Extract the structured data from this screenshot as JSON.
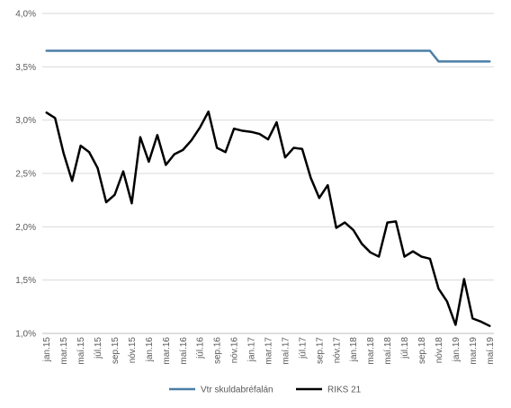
{
  "chart_data": {
    "type": "line",
    "title": "",
    "xlabel": "",
    "ylabel": "",
    "ylim": [
      1.0,
      4.0
    ],
    "y_ticks": [
      "1,0%",
      "1,5%",
      "2,0%",
      "2,5%",
      "3,0%",
      "3,5%",
      "4,0%"
    ],
    "y_tick_values": [
      1.0,
      1.5,
      2.0,
      2.5,
      3.0,
      3.5,
      4.0
    ],
    "grid": true,
    "legend_position": "bottom",
    "x": [
      "jan.15",
      "feb.15",
      "mar.15",
      "apr.15",
      "maí.15",
      "jún.15",
      "júl.15",
      "ágú.15",
      "sep.15",
      "okt.15",
      "nóv.15",
      "des.15",
      "jan.16",
      "feb.16",
      "mar.16",
      "apr.16",
      "maí.16",
      "jún.16",
      "júl.16",
      "ágú.16",
      "sep.16",
      "okt.16",
      "nóv.16",
      "des.16",
      "jan.17",
      "feb.17",
      "mar.17",
      "apr.17",
      "maí.17",
      "jún.17",
      "júl.17",
      "ágú.17",
      "sep.17",
      "okt.17",
      "nóv.17",
      "des.17",
      "jan.18",
      "feb.18",
      "mar.18",
      "apr.18",
      "maí.18",
      "jún.18",
      "júl.18",
      "ágú.18",
      "sep.18",
      "okt.18",
      "nóv.18",
      "des.18",
      "jan.19",
      "feb.19",
      "mar.19",
      "apr.19",
      "maí.19"
    ],
    "x_tick_labels": [
      "jan.15",
      "mar.15",
      "maí.15",
      "júl.15",
      "sep.15",
      "nóv.15",
      "jan.16",
      "mar.16",
      "maí.16",
      "júl.16",
      "sep.16",
      "nóv.16",
      "jan.17",
      "mar.17",
      "maí.17",
      "júl.17",
      "sep.17",
      "nóv.17",
      "jan.18",
      "mar.18",
      "maí.18",
      "júl.18",
      "sep.18",
      "nóv.18",
      "jan.19",
      "mar.19",
      "maí.19"
    ],
    "series": [
      {
        "name": "Vtr skuldabréfalán",
        "color": "#4a7ea6",
        "values": [
          3.65,
          3.65,
          3.65,
          3.65,
          3.65,
          3.65,
          3.65,
          3.65,
          3.65,
          3.65,
          3.65,
          3.65,
          3.65,
          3.65,
          3.65,
          3.65,
          3.65,
          3.65,
          3.65,
          3.65,
          3.65,
          3.65,
          3.65,
          3.65,
          3.65,
          3.65,
          3.65,
          3.65,
          3.65,
          3.65,
          3.65,
          3.65,
          3.65,
          3.65,
          3.65,
          3.65,
          3.65,
          3.65,
          3.65,
          3.65,
          3.65,
          3.65,
          3.65,
          3.65,
          3.65,
          3.65,
          3.55,
          3.55,
          3.55,
          3.55,
          3.55,
          3.55,
          3.55
        ]
      },
      {
        "name": "RIKS 21",
        "color": "#000000",
        "values": [
          3.07,
          3.02,
          2.69,
          2.43,
          2.76,
          2.7,
          2.55,
          2.23,
          2.3,
          2.52,
          2.22,
          2.84,
          2.61,
          2.86,
          2.58,
          2.68,
          2.72,
          2.81,
          2.93,
          3.08,
          2.74,
          2.7,
          2.92,
          2.9,
          2.89,
          2.87,
          2.82,
          2.98,
          2.65,
          2.74,
          2.73,
          2.46,
          2.27,
          2.39,
          1.99,
          2.04,
          1.97,
          1.84,
          1.76,
          1.72,
          2.04,
          2.05,
          1.72,
          1.77,
          1.72,
          1.7,
          1.42,
          1.3,
          1.08,
          1.51,
          1.14,
          1.11,
          1.07
        ]
      }
    ]
  }
}
